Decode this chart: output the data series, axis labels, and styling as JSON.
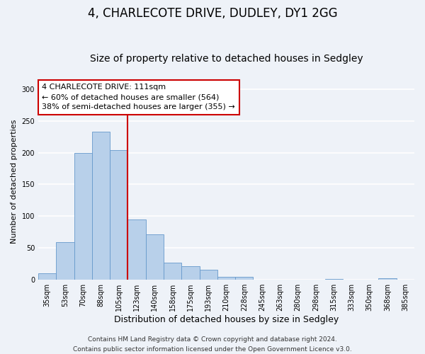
{
  "title": "4, CHARLECOTE DRIVE, DUDLEY, DY1 2GG",
  "subtitle": "Size of property relative to detached houses in Sedgley",
  "xlabel": "Distribution of detached houses by size in Sedgley",
  "ylabel": "Number of detached properties",
  "bar_labels": [
    "35sqm",
    "53sqm",
    "70sqm",
    "88sqm",
    "105sqm",
    "123sqm",
    "140sqm",
    "158sqm",
    "175sqm",
    "193sqm",
    "210sqm",
    "228sqm",
    "245sqm",
    "263sqm",
    "280sqm",
    "298sqm",
    "315sqm",
    "333sqm",
    "350sqm",
    "368sqm",
    "385sqm"
  ],
  "bar_values": [
    10,
    59,
    200,
    233,
    204,
    95,
    71,
    27,
    21,
    15,
    4,
    4,
    0,
    0,
    0,
    0,
    1,
    0,
    0,
    2,
    0
  ],
  "bar_color": "#b8d0ea",
  "bar_edge_color": "#6699cc",
  "property_line_x": 4.5,
  "annotation_title": "4 CHARLECOTE DRIVE: 111sqm",
  "annotation_line1": "← 60% of detached houses are smaller (564)",
  "annotation_line2": "38% of semi-detached houses are larger (355) →",
  "annotation_box_color": "#ffffff",
  "annotation_border_color": "#cc0000",
  "vline_color": "#cc0000",
  "ylim": [
    0,
    310
  ],
  "footnote1": "Contains HM Land Registry data © Crown copyright and database right 2024.",
  "footnote2": "Contains public sector information licensed under the Open Government Licence v3.0.",
  "bg_color": "#eef2f8",
  "grid_color": "#ffffff",
  "title_fontsize": 12,
  "subtitle_fontsize": 10,
  "ylabel_fontsize": 8,
  "xlabel_fontsize": 9,
  "tick_fontsize": 7,
  "annotation_fontsize": 8,
  "footnote_fontsize": 6.5
}
